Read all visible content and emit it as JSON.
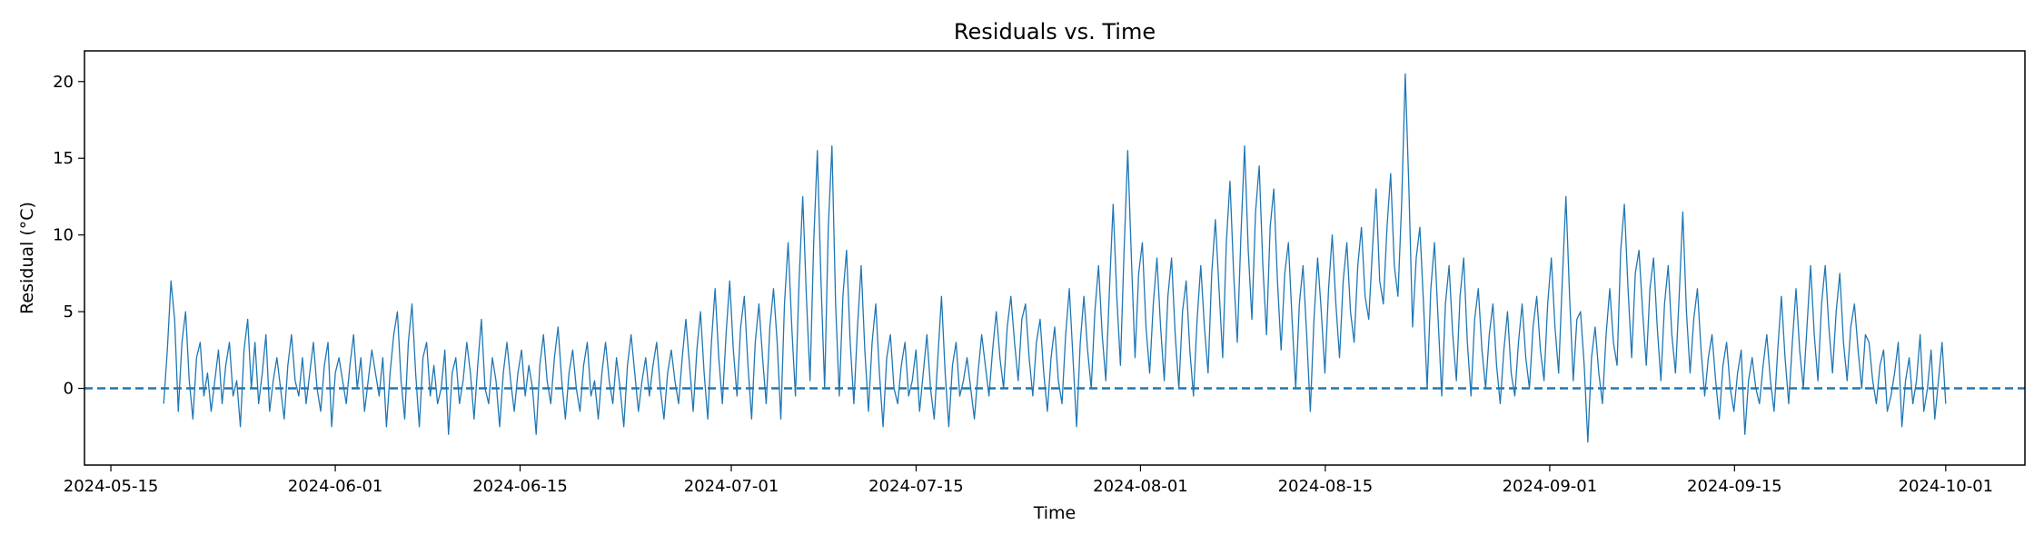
{
  "chart_data": {
    "type": "line",
    "title": "Residuals vs. Time",
    "xlabel": "Time",
    "ylabel": "Residual (°C)",
    "xlim": [
      "2024-05-13",
      "2024-10-07"
    ],
    "ylim": [
      -5,
      22
    ],
    "grid": false,
    "legend": "none",
    "x_ticks": [
      "2024-05-15",
      "2024-06-01",
      "2024-06-15",
      "2024-07-01",
      "2024-07-15",
      "2024-08-01",
      "2024-08-15",
      "2024-09-01",
      "2024-09-15",
      "2024-10-01"
    ],
    "y_ticks": [
      0,
      5,
      10,
      15,
      20
    ],
    "reference_line": {
      "y": 0,
      "style": "dashed",
      "color": "#1f77b4"
    },
    "series": [
      {
        "color": "#1f77b4",
        "x_start": "2024-05-19",
        "x_end": "2024-10-01",
        "sampling": "6-hourly",
        "values": [
          -1.0,
          2.5,
          7.0,
          4.5,
          -1.5,
          3.0,
          5.0,
          0.5,
          -2.0,
          2.0,
          3.0,
          -0.5,
          1.0,
          -1.5,
          0.5,
          2.5,
          -1.0,
          1.5,
          3.0,
          -0.5,
          0.5,
          -2.5,
          2.5,
          4.5,
          0.0,
          3.0,
          -1.0,
          1.0,
          3.5,
          -1.5,
          0.5,
          2.0,
          0.0,
          -2.0,
          1.5,
          3.5,
          0.5,
          -0.5,
          2.0,
          -1.0,
          1.0,
          3.0,
          0.0,
          -1.5,
          1.5,
          3.0,
          -2.5,
          1.0,
          2.0,
          0.5,
          -1.0,
          1.5,
          3.5,
          0.0,
          2.0,
          -1.5,
          0.5,
          2.5,
          1.0,
          -0.5,
          2.0,
          -2.5,
          1.0,
          3.5,
          5.0,
          0.5,
          -2.0,
          3.0,
          5.5,
          1.0,
          -2.5,
          2.0,
          3.0,
          -0.5,
          1.5,
          -1.0,
          0.0,
          2.5,
          -3.0,
          1.0,
          2.0,
          -1.0,
          0.5,
          3.0,
          1.0,
          -2.0,
          1.5,
          4.5,
          0.0,
          -1.0,
          2.0,
          0.5,
          -2.5,
          1.0,
          3.0,
          0.5,
          -1.5,
          1.0,
          2.5,
          -0.5,
          1.5,
          0.0,
          -3.0,
          1.5,
          3.5,
          0.5,
          -1.0,
          2.0,
          4.0,
          0.5,
          -2.0,
          1.0,
          2.5,
          0.0,
          -1.5,
          1.5,
          3.0,
          -0.5,
          0.5,
          -2.0,
          1.0,
          3.0,
          0.5,
          -1.0,
          2.0,
          0.0,
          -2.5,
          1.5,
          3.5,
          1.0,
          -1.5,
          0.5,
          2.0,
          -0.5,
          1.5,
          3.0,
          0.0,
          -2.0,
          1.0,
          2.5,
          0.5,
          -1.0,
          2.0,
          4.5,
          1.5,
          -1.5,
          2.5,
          5.0,
          1.0,
          -2.0,
          3.0,
          6.5,
          2.0,
          -1.0,
          3.5,
          7.0,
          2.5,
          -0.5,
          4.0,
          6.0,
          1.5,
          -2.0,
          3.0,
          5.5,
          2.0,
          -1.0,
          4.0,
          6.5,
          3.0,
          -2.0,
          5.5,
          9.5,
          4.0,
          -0.5,
          7.0,
          12.5,
          6.0,
          0.5,
          9.5,
          15.5,
          7.0,
          0.0,
          10.5,
          15.8,
          5.5,
          -0.5,
          6.0,
          9.0,
          3.0,
          -1.0,
          4.0,
          8.0,
          2.5,
          -1.5,
          3.0,
          5.5,
          1.0,
          -2.5,
          2.0,
          3.5,
          0.0,
          -1.0,
          1.5,
          3.0,
          -0.5,
          0.5,
          2.5,
          -1.5,
          1.0,
          3.5,
          0.0,
          -2.0,
          2.0,
          6.0,
          1.0,
          -2.5,
          1.5,
          3.0,
          -0.5,
          0.5,
          2.0,
          0.0,
          -2.0,
          1.0,
          3.5,
          1.5,
          -0.5,
          2.5,
          5.0,
          2.0,
          0.0,
          4.0,
          6.0,
          3.0,
          0.5,
          4.5,
          5.5,
          2.0,
          -0.5,
          3.0,
          4.5,
          1.0,
          -1.5,
          2.0,
          4.0,
          0.5,
          -1.0,
          3.5,
          6.5,
          2.0,
          -2.5,
          3.0,
          6.0,
          2.5,
          0.0,
          5.0,
          8.0,
          3.5,
          0.5,
          6.5,
          12.0,
          6.0,
          1.5,
          9.0,
          15.5,
          8.5,
          2.0,
          7.5,
          9.5,
          4.0,
          1.0,
          5.5,
          8.5,
          4.0,
          0.5,
          6.0,
          8.5,
          3.5,
          0.0,
          5.0,
          7.0,
          2.5,
          -0.5,
          4.5,
          8.0,
          4.0,
          1.0,
          7.5,
          11.0,
          6.5,
          2.0,
          9.5,
          13.5,
          7.5,
          3.0,
          10.0,
          15.8,
          9.0,
          4.5,
          11.5,
          14.5,
          8.0,
          3.5,
          10.5,
          13.0,
          7.0,
          2.5,
          7.5,
          9.5,
          4.5,
          0.0,
          5.5,
          8.0,
          3.5,
          -1.5,
          4.5,
          8.5,
          5.0,
          1.0,
          6.5,
          10.0,
          5.5,
          2.0,
          7.0,
          9.5,
          5.0,
          3.0,
          8.0,
          10.5,
          6.0,
          4.5,
          9.0,
          13.0,
          7.0,
          5.5,
          10.5,
          14.0,
          8.0,
          6.0,
          12.0,
          20.5,
          13.0,
          4.0,
          8.5,
          10.5,
          5.5,
          0.0,
          6.5,
          9.5,
          4.5,
          -0.5,
          5.5,
          8.0,
          3.5,
          0.5,
          6.0,
          8.5,
          3.0,
          -0.5,
          4.5,
          6.5,
          2.5,
          0.0,
          3.5,
          5.5,
          1.5,
          -1.0,
          2.5,
          5.0,
          1.0,
          -0.5,
          3.0,
          5.5,
          2.0,
          0.0,
          4.0,
          6.0,
          2.5,
          0.5,
          5.5,
          8.5,
          4.0,
          1.0,
          7.0,
          12.5,
          6.0,
          0.5,
          4.5,
          5.0,
          1.5,
          -3.5,
          2.0,
          4.0,
          1.0,
          -1.0,
          3.5,
          6.5,
          3.0,
          1.5,
          9.0,
          12.0,
          6.5,
          2.0,
          7.5,
          9.0,
          5.0,
          1.5,
          6.5,
          8.5,
          4.0,
          0.5,
          5.5,
          8.0,
          3.5,
          1.0,
          6.0,
          11.5,
          5.0,
          1.0,
          4.5,
          6.5,
          2.5,
          -0.5,
          2.0,
          3.5,
          0.5,
          -2.0,
          1.5,
          3.0,
          0.0,
          -1.5,
          1.0,
          2.5,
          -3.0,
          0.5,
          2.0,
          0.0,
          -1.0,
          1.5,
          3.5,
          0.5,
          -1.5,
          2.5,
          6.0,
          2.0,
          -1.0,
          3.0,
          6.5,
          2.5,
          0.0,
          4.0,
          8.0,
          3.5,
          0.5,
          5.5,
          8.0,
          4.0,
          1.0,
          5.0,
          7.5,
          3.0,
          0.5,
          4.0,
          5.5,
          2.5,
          0.0,
          3.5,
          3.0,
          0.5,
          -1.0,
          1.5,
          2.5,
          -1.5,
          -0.5,
          1.0,
          3.0,
          -2.5,
          0.5,
          2.0,
          -1.0,
          0.5,
          3.5,
          -1.5,
          0.0,
          2.5,
          -2.0,
          0.5,
          3.0,
          -1.0
        ]
      }
    ]
  }
}
